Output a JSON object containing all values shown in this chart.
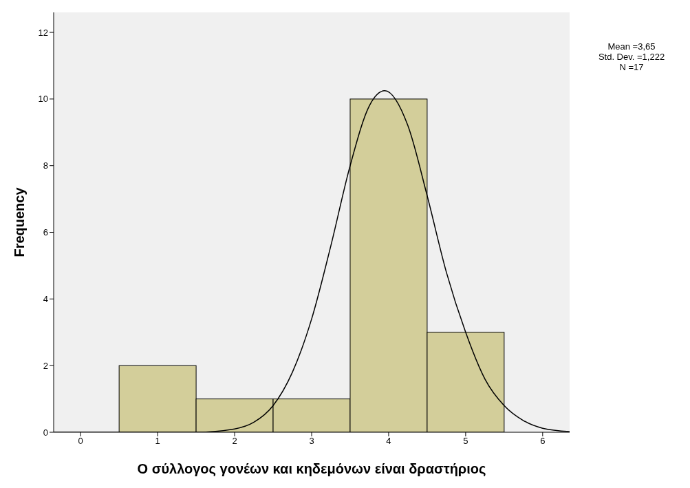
{
  "chart_data": {
    "type": "histogram",
    "xlabel": "Ο σύλλογος γονέων και κηδεμόνων είναι  δραστήριος",
    "ylabel": "Frequency",
    "bins": [
      0.5,
      1.5,
      2.5,
      3.5,
      4.5,
      5.5
    ],
    "values": [
      2,
      1,
      1,
      10,
      3
    ],
    "color": "#d3ce9a",
    "series": [
      {
        "type": "line",
        "color": "#000000",
        "x": [
          -0.35,
          1,
          1.5,
          2,
          2.25,
          2.5,
          2.75,
          3,
          3.25,
          3.5,
          3.75,
          3.95,
          4.25,
          4.5,
          4.75,
          5,
          5.25,
          5.5,
          5.75,
          6,
          6.35
        ],
        "values": [
          0,
          0,
          0,
          0.1,
          0.3,
          0.8,
          1.8,
          3.4,
          5.6,
          8,
          9.8,
          10.25,
          9.2,
          7.1,
          4.8,
          3,
          1.6,
          0.8,
          0.35,
          0.12,
          0.02
        ]
      }
    ],
    "xlim": [
      -0.35,
      6.35
    ],
    "xticks": [
      0,
      1,
      2,
      3,
      4,
      5,
      6
    ],
    "ylim": [
      0,
      12.6
    ],
    "yticks": [
      0,
      2,
      4,
      6,
      8,
      10,
      12
    ],
    "grid": false,
    "legend": false,
    "marker": "none",
    "annotations": [
      "Mean =3,65",
      "Std. Dev. =1,222",
      "N =17"
    ]
  }
}
